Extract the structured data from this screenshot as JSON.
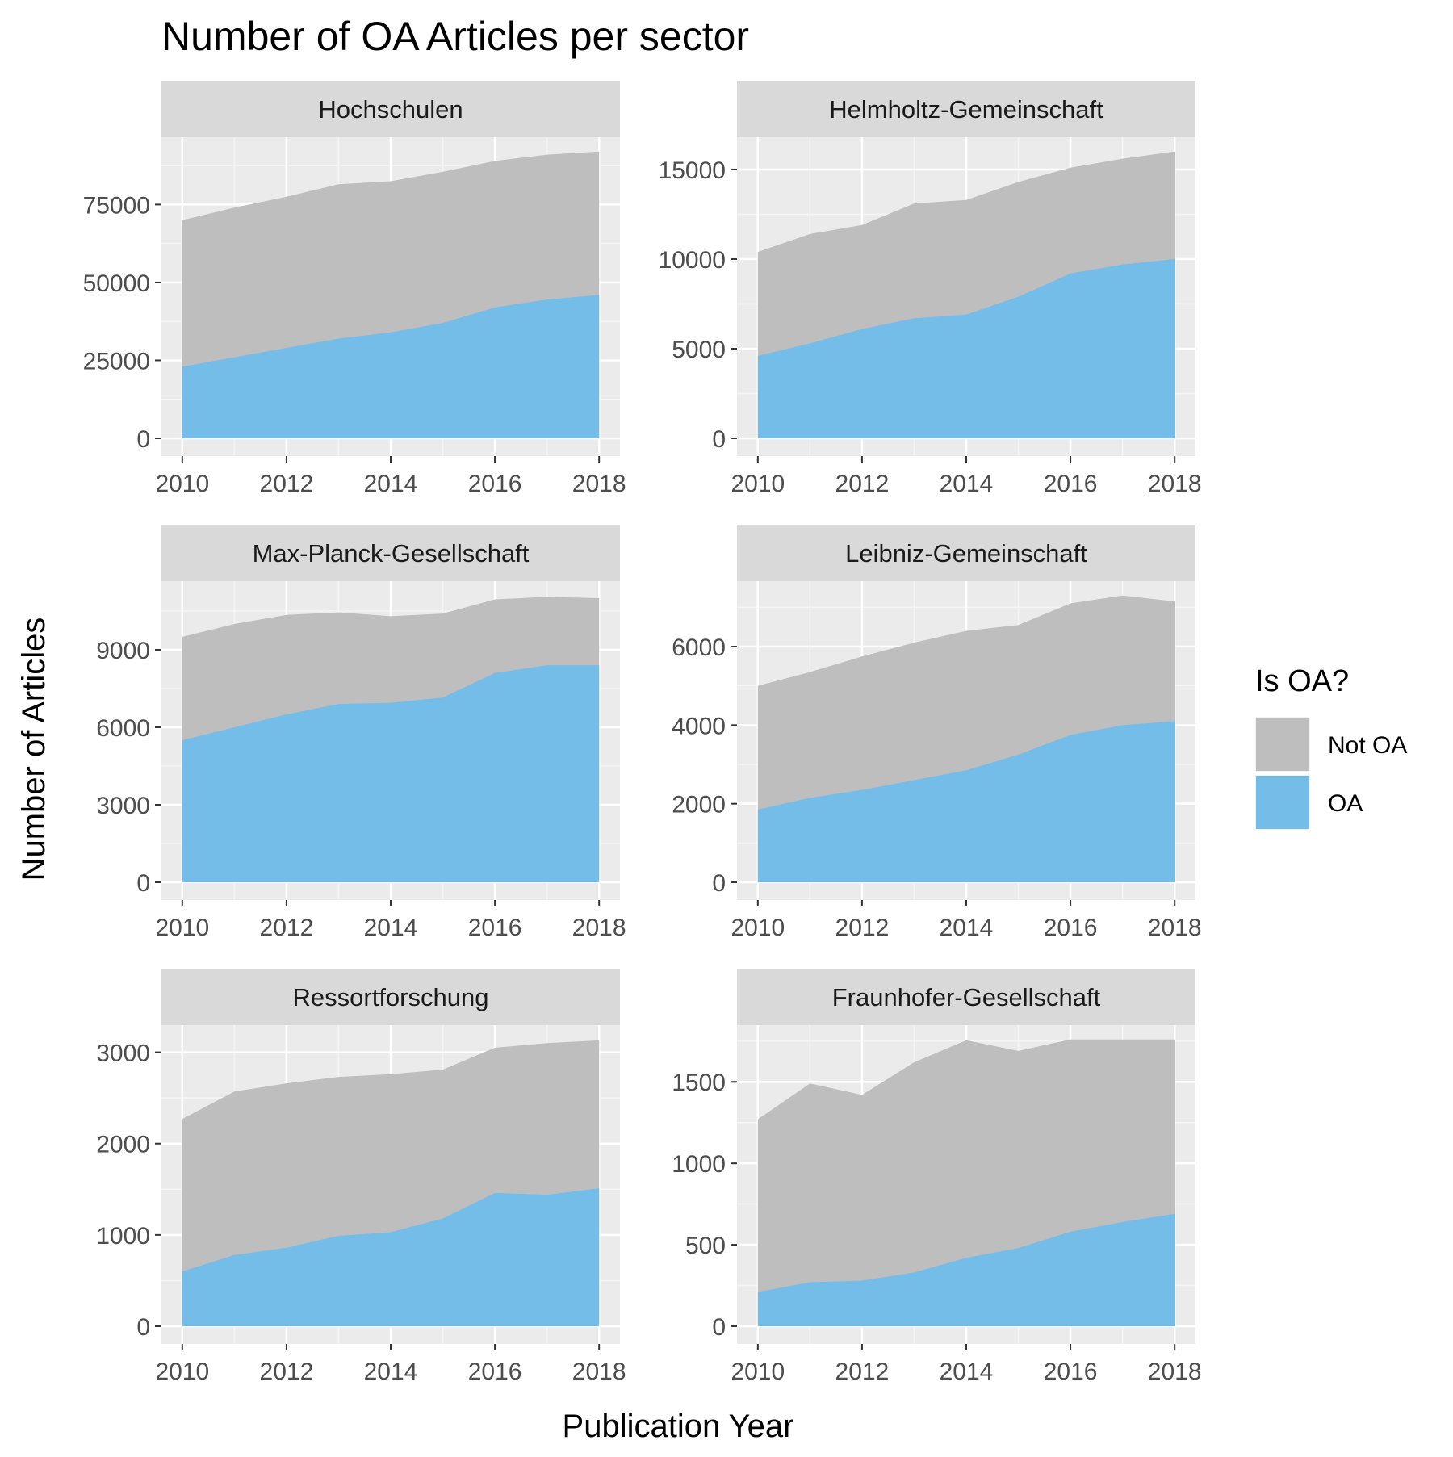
{
  "chart_data": {
    "type": "area",
    "title": "Number of OA Articles per sector",
    "xlabel": "Publication Year",
    "ylabel": "Number of Articles",
    "x": [
      2010,
      2011,
      2012,
      2013,
      2014,
      2015,
      2016,
      2017,
      2018
    ],
    "x_ticks": [
      "2010",
      "2012",
      "2014",
      "2016",
      "2018"
    ],
    "stacked": true,
    "grid": true,
    "legend": {
      "title": "Is OA?",
      "position": "right",
      "entries": [
        {
          "label": "Not OA",
          "color": "#bebebe"
        },
        {
          "label": "OA",
          "color": "#74bde8"
        }
      ]
    },
    "panels": [
      {
        "name": "Hochschulen",
        "ylim": [
          0,
          92000
        ],
        "y_ticks": [
          "0",
          "25000",
          "50000",
          "75000"
        ],
        "y_tick_values": [
          0,
          25000,
          50000,
          75000
        ],
        "oa": [
          23000,
          26000,
          29000,
          32000,
          34000,
          37000,
          42000,
          44500,
          46000
        ],
        "total": [
          70000,
          74000,
          77500,
          81500,
          82500,
          85500,
          89000,
          91000,
          92000
        ]
      },
      {
        "name": "Helmholtz-Gemeinschaft",
        "ylim": [
          0,
          16000
        ],
        "y_ticks": [
          "0",
          "5000",
          "10000",
          "15000"
        ],
        "y_tick_values": [
          0,
          5000,
          10000,
          15000
        ],
        "oa": [
          4600,
          5300,
          6100,
          6700,
          6900,
          7900,
          9200,
          9700,
          10000
        ],
        "total": [
          10400,
          11400,
          11900,
          13100,
          13300,
          14300,
          15100,
          15600,
          16000
        ]
      },
      {
        "name": "Max-Planck-Gesellschaft",
        "ylim": [
          0,
          11100
        ],
        "y_ticks": [
          "0",
          "3000",
          "6000",
          "9000"
        ],
        "y_tick_values": [
          0,
          3000,
          6000,
          9000
        ],
        "oa": [
          5500,
          6000,
          6500,
          6900,
          6950,
          7150,
          8100,
          8400,
          8400
        ],
        "total": [
          9500,
          10000,
          10350,
          10450,
          10300,
          10400,
          10950,
          11050,
          11000
        ]
      },
      {
        "name": "Leibniz-Gemeinschaft",
        "ylim": [
          0,
          7300
        ],
        "y_ticks": [
          "0",
          "2000",
          "4000",
          "6000"
        ],
        "y_tick_values": [
          0,
          2000,
          4000,
          6000
        ],
        "oa": [
          1850,
          2150,
          2350,
          2600,
          2850,
          3250,
          3750,
          4000,
          4100
        ],
        "total": [
          5000,
          5350,
          5750,
          6100,
          6400,
          6550,
          7100,
          7300,
          7150
        ]
      },
      {
        "name": "Ressortforschung",
        "ylim": [
          0,
          3140
        ],
        "y_ticks": [
          "0",
          "1000",
          "2000",
          "3000"
        ],
        "y_tick_values": [
          0,
          1000,
          2000,
          3000
        ],
        "oa": [
          600,
          780,
          860,
          990,
          1030,
          1180,
          1460,
          1440,
          1510
        ],
        "total": [
          2270,
          2570,
          2660,
          2730,
          2760,
          2810,
          3050,
          3100,
          3130
        ]
      },
      {
        "name": "Fraunhofer-Gesellschaft",
        "ylim": [
          0,
          1760
        ],
        "y_ticks": [
          "0",
          "500",
          "1000",
          "1500"
        ],
        "y_tick_values": [
          0,
          500,
          1000,
          1500
        ],
        "oa": [
          210,
          270,
          280,
          330,
          420,
          480,
          580,
          640,
          690
        ],
        "total": [
          1270,
          1490,
          1420,
          1620,
          1755,
          1690,
          1760,
          1760,
          1760
        ]
      }
    ]
  }
}
